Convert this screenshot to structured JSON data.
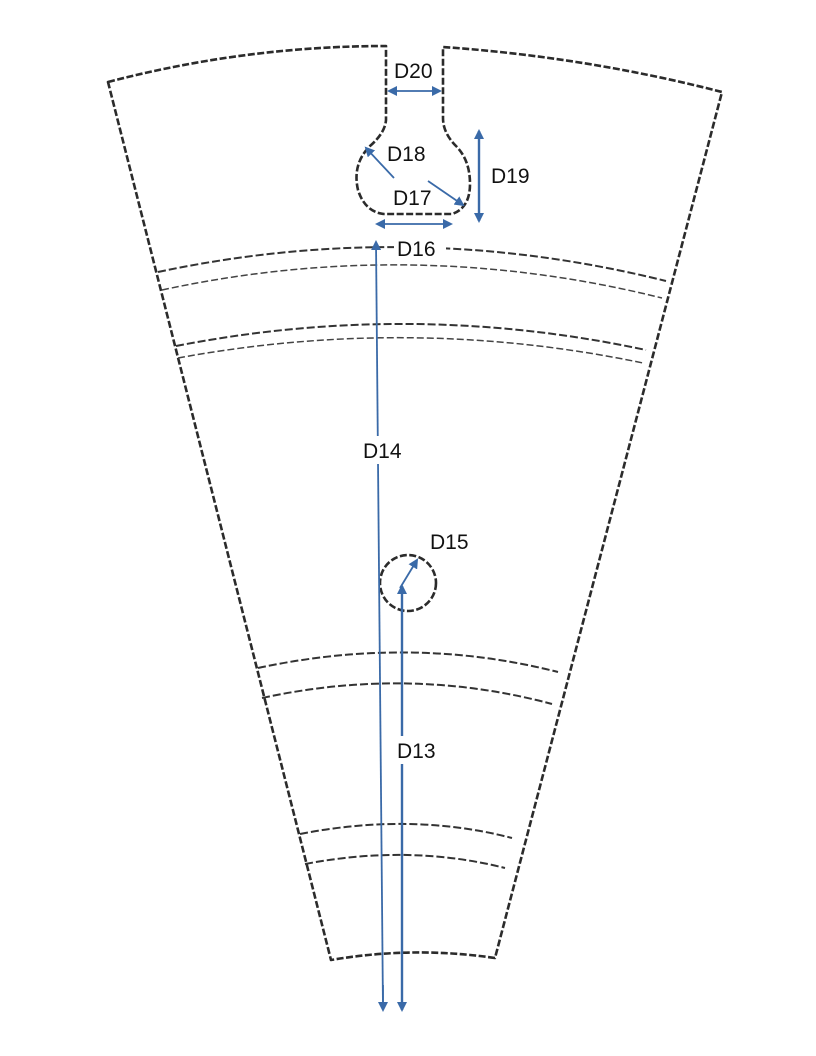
{
  "labels": {
    "d13": "D13",
    "d14": "D14",
    "d15": "D15",
    "d16": "D16",
    "d17": "D17",
    "d18": "D18",
    "d19": "D19",
    "d20": "D20"
  },
  "colors": {
    "dimension": "#3a6aa8",
    "outline": "#2b2b2b",
    "background": "#ffffff"
  }
}
